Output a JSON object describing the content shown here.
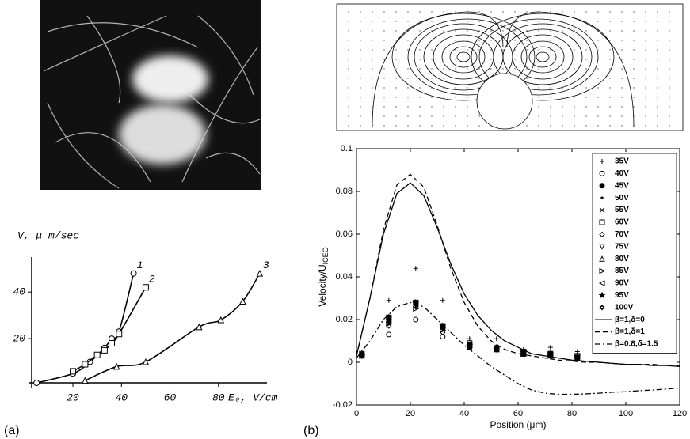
{
  "panel_labels": [
    "(a)",
    "(b)"
  ],
  "chart_data": [
    {
      "type": "line",
      "ylabel": "V, μ m/sec",
      "xlabel": "E₀, V/cm",
      "xlim": [
        3,
        100
      ],
      "ylim": [
        0,
        55
      ],
      "xticks": [
        20,
        40,
        60,
        80
      ],
      "yticks": [
        20,
        40
      ],
      "series": [
        {
          "name": "1",
          "marker": "circle",
          "color": "#000000",
          "x": [
            5,
            20,
            27,
            33,
            36,
            39,
            45
          ],
          "values": [
            1,
            5,
            10,
            16,
            20,
            23,
            48
          ]
        },
        {
          "name": "2",
          "marker": "square",
          "color": "#000000",
          "x": [
            20,
            25,
            30,
            33,
            36,
            39,
            50
          ],
          "values": [
            6,
            9,
            13,
            15,
            18,
            22,
            42
          ]
        },
        {
          "name": "3",
          "marker": "tri-up",
          "color": "#000000",
          "x": [
            25,
            38,
            50,
            72,
            81,
            90,
            97
          ],
          "values": [
            2,
            8,
            10,
            25,
            28,
            36,
            48
          ]
        }
      ]
    },
    {
      "type": "scatter",
      "xlabel": "Position (μm)",
      "ylabel": "Velocity/U",
      "ylabel_sub": "ICEO",
      "xlim": [
        0,
        120
      ],
      "ylim": [
        -0.02,
        0.1
      ],
      "xticks": [
        0,
        20,
        40,
        60,
        80,
        100,
        120
      ],
      "yticks": [
        -0.02,
        0,
        0.02,
        0.04,
        0.06,
        0.08,
        0.1
      ],
      "legend": "upper right",
      "x": [
        2,
        12,
        22,
        32,
        42,
        52,
        62,
        72,
        82
      ],
      "series": [
        {
          "name": "35V",
          "marker": "plus",
          "values": [
            0.004,
            0.029,
            0.044,
            0.029,
            0.011,
            0.011,
            0.006,
            0.007,
            0.005
          ]
        },
        {
          "name": "40V",
          "marker": "circle",
          "values": [
            0.003,
            0.013,
            0.02,
            0.012,
            0.007,
            0.007,
            0.004,
            0.003,
            0.002
          ]
        },
        {
          "name": "45V",
          "marker": "dot",
          "values": [
            0.003,
            0.021,
            0.028,
            0.017,
            0.008,
            0.006,
            0.005,
            0.004,
            0.002
          ]
        },
        {
          "name": "50V",
          "marker": "point",
          "values": [
            0.003,
            0.02,
            0.027,
            0.016,
            0.008,
            0.006,
            0.004,
            0.003,
            0.002
          ]
        },
        {
          "name": "55V",
          "marker": "x",
          "values": [
            0.004,
            0.018,
            0.026,
            0.015,
            0.007,
            0.006,
            0.004,
            0.003,
            0.002
          ]
        },
        {
          "name": "60V",
          "marker": "square",
          "values": [
            0.004,
            0.021,
            0.028,
            0.017,
            0.009,
            0.006,
            0.004,
            0.004,
            0.003
          ]
        },
        {
          "name": "70V",
          "marker": "diamond",
          "values": [
            0.003,
            0.017,
            0.026,
            0.014,
            0.007,
            0.006,
            0.004,
            0.003,
            0.002
          ]
        },
        {
          "name": "75V",
          "marker": "tri-down",
          "values": [
            0.003,
            0.019,
            0.027,
            0.016,
            0.008,
            0.006,
            0.005,
            0.003,
            0.002
          ]
        },
        {
          "name": "80V",
          "marker": "tri-up",
          "values": [
            0.004,
            0.02,
            0.028,
            0.017,
            0.008,
            0.007,
            0.004,
            0.004,
            0.003
          ]
        },
        {
          "name": "85V",
          "marker": "tri-right",
          "values": [
            0.003,
            0.018,
            0.025,
            0.015,
            0.007,
            0.006,
            0.004,
            0.003,
            0.002
          ]
        },
        {
          "name": "90V",
          "marker": "tri-left",
          "values": [
            0.003,
            0.019,
            0.027,
            0.016,
            0.008,
            0.006,
            0.004,
            0.003,
            0.002
          ]
        },
        {
          "name": "95V",
          "marker": "star",
          "values": [
            0.003,
            0.021,
            0.028,
            0.017,
            0.008,
            0.006,
            0.005,
            0.004,
            0.003
          ]
        },
        {
          "name": "100V",
          "marker": "hexstar",
          "values": [
            0.004,
            0.02,
            0.027,
            0.016,
            0.008,
            0.006,
            0.004,
            0.004,
            0.002
          ]
        }
      ],
      "lines": [
        {
          "name": "β=1,δ=0",
          "dash": "solid",
          "x": [
            0,
            5,
            10,
            15,
            20,
            25,
            30,
            35,
            40,
            45,
            50,
            55,
            60,
            65,
            70,
            75,
            80,
            85,
            90,
            95,
            100,
            105,
            110,
            115,
            120
          ],
          "values": [
            0.003,
            0.03,
            0.06,
            0.079,
            0.084,
            0.078,
            0.063,
            0.046,
            0.032,
            0.022,
            0.015,
            0.01,
            0.007,
            0.004,
            0.003,
            0.002,
            0.001,
            0.0005,
            0,
            -0.0005,
            -0.001,
            -0.001,
            -0.0015,
            -0.0015,
            -0.002
          ]
        },
        {
          "name": "β=1,δ=1",
          "dash": "dashed",
          "x": [
            0,
            5,
            10,
            15,
            20,
            25,
            30,
            35,
            40,
            45,
            50,
            55,
            60,
            65,
            70,
            75,
            80,
            85,
            90,
            95,
            100,
            105,
            110,
            115,
            120
          ],
          "values": [
            0.003,
            0.03,
            0.062,
            0.083,
            0.088,
            0.082,
            0.064,
            0.044,
            0.028,
            0.017,
            0.01,
            0.006,
            0.004,
            0.003,
            0.002,
            0.001,
            0.0005,
            0,
            0,
            -0.0005,
            -0.001,
            -0.001,
            -0.001,
            -0.0015,
            -0.0015
          ]
        },
        {
          "name": "β=0.8,δ=1.5",
          "dash": "dashdot",
          "x": [
            0,
            5,
            10,
            15,
            20,
            25,
            30,
            35,
            40,
            45,
            50,
            55,
            60,
            65,
            70,
            75,
            80,
            85,
            90,
            95,
            100,
            105,
            110,
            115,
            120
          ],
          "values": [
            0.002,
            0.01,
            0.02,
            0.026,
            0.028,
            0.026,
            0.02,
            0.014,
            0.008,
            0.003,
            -0.002,
            -0.006,
            -0.01,
            -0.013,
            -0.0145,
            -0.015,
            -0.015,
            -0.0148,
            -0.0145,
            -0.014,
            -0.0138,
            -0.0133,
            -0.013,
            -0.0125,
            -0.012
          ]
        }
      ]
    }
  ]
}
